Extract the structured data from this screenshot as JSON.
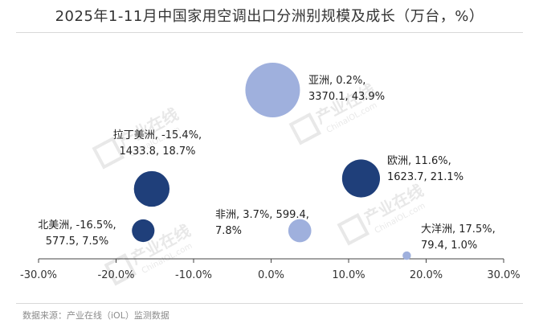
{
  "title": "2025年1-11月中国家用空调出口分洲别规模及成长（万台，%）",
  "source": "数据来源：产业在线（iOL）监测数据",
  "watermark": {
    "brand": "产业在线",
    "site": "ChinaIOL.com"
  },
  "colors": {
    "dark_bubble": "#1f3f7a",
    "light_bubble": "#9fb0dd",
    "axis": "#444444"
  },
  "chart_data": {
    "type": "bubble",
    "xlim": [
      -30,
      30
    ],
    "x_ticks": [
      "-30.0%",
      "-20.0%",
      "-10.0%",
      "0.0%",
      "10.0%",
      "20.0%",
      "30.0%"
    ],
    "x_tick_values": [
      -30,
      -20,
      -10,
      0,
      10,
      20,
      30
    ],
    "points": [
      {
        "name": "亚洲",
        "growth_pct": 0.2,
        "volume": 3370.1,
        "share_pct": 43.9,
        "line1": "亚洲, 0.2%,",
        "line2": "3370.1, 43.9%",
        "shade": "light"
      },
      {
        "name": "拉丁美洲",
        "growth_pct": -15.4,
        "volume": 1433.8,
        "share_pct": 18.7,
        "line1": "拉丁美洲, -15.4%,",
        "line2": "1433.8, 18.7%",
        "shade": "dark"
      },
      {
        "name": "欧洲",
        "growth_pct": 11.6,
        "volume": 1623.7,
        "share_pct": 21.1,
        "line1": "欧洲, 11.6%,",
        "line2": "1623.7, 21.1%",
        "shade": "dark"
      },
      {
        "name": "北美洲",
        "growth_pct": -16.5,
        "volume": 577.5,
        "share_pct": 7.5,
        "line1": "北美洲, -16.5%,",
        "line2": "577.5, 7.5%",
        "shade": "dark"
      },
      {
        "name": "非洲",
        "growth_pct": 3.7,
        "volume": 599.4,
        "share_pct": 7.8,
        "line1": "非洲, 3.7%, 599.4,",
        "line2": "7.8%",
        "shade": "light"
      },
      {
        "name": "大洋洲",
        "growth_pct": 17.5,
        "volume": 79.4,
        "share_pct": 1.0,
        "line1": "大洋洲, 17.5%,",
        "line2": "79.4, 1.0%",
        "shade": "light"
      }
    ]
  }
}
